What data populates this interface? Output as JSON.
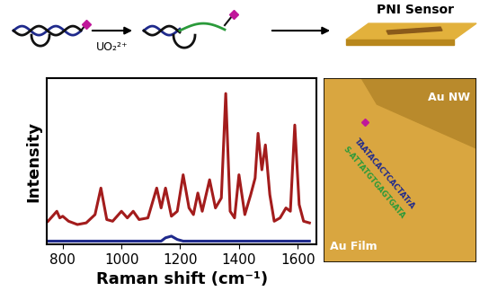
{
  "chart_data": {
    "type": "line",
    "xlabel": "Raman shift (cm⁻¹)",
    "ylabel": "Intensity",
    "xlim": [
      745,
      1665
    ],
    "xticks": [
      800,
      1000,
      1200,
      1400,
      1600
    ],
    "ylim": [
      0,
      100
    ],
    "yticks": [],
    "tick_labels": "x",
    "x": [
      750,
      770,
      780,
      790,
      800,
      820,
      850,
      880,
      910,
      930,
      950,
      970,
      1000,
      1020,
      1040,
      1060,
      1090,
      1120,
      1135,
      1150,
      1170,
      1190,
      1210,
      1230,
      1245,
      1260,
      1275,
      1300,
      1320,
      1340,
      1355,
      1370,
      1385,
      1400,
      1420,
      1440,
      1455,
      1465,
      1478,
      1490,
      1505,
      1520,
      1540,
      1560,
      1575,
      1590,
      1605,
      1620,
      1640
    ],
    "series": [
      {
        "color": "#a31c1c",
        "values": [
          14,
          18,
          20,
          16,
          17,
          14,
          12,
          13,
          18,
          34,
          15,
          14,
          20,
          16,
          20,
          15,
          16,
          34,
          22,
          34,
          17,
          20,
          42,
          22,
          18,
          31,
          20,
          39,
          22,
          28,
          91,
          20,
          16,
          42,
          18,
          30,
          40,
          67,
          45,
          60,
          30,
          14,
          16,
          22,
          20,
          72,
          24,
          14,
          13
        ]
      },
      {
        "color": "#1f2a8c",
        "values": [
          2,
          2,
          2,
          2,
          2,
          2,
          2,
          2,
          2,
          2,
          2,
          2,
          2,
          2,
          2,
          2,
          2,
          2,
          2,
          4,
          5,
          3,
          2,
          2,
          2,
          2,
          2,
          2,
          2,
          2,
          2,
          2,
          2,
          2,
          2,
          2,
          2,
          2,
          2,
          2,
          2,
          2,
          2,
          2,
          2,
          2,
          2,
          2,
          2
        ]
      }
    ]
  },
  "diagram": {
    "ion_label": "UO₂²⁺",
    "sensor_label": "PNI Sensor",
    "inset": {
      "nanowire_label": "Au NW",
      "film_label": "Au Film",
      "strand_top": "TAATACACTCACTATrA",
      "strand_bottom": "S-ATTATGTGAGTGATA"
    }
  }
}
